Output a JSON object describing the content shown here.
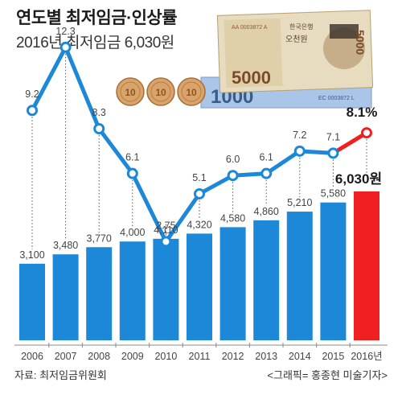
{
  "header": {
    "title": "연도별 최저임금·인상률",
    "subtitle": "2016년 최저임금 6,030원"
  },
  "footer": {
    "source": "자료: 최저임금위원회",
    "credit": "<그래픽= 홍종현 미술기자>"
  },
  "illustration": {
    "banknote_5000_text": "5000",
    "banknote_bank_text": "한국은행",
    "banknote_name_text": "오천원",
    "banknote_serial": "AA 0003872 A",
    "banknote_1000_text": "1000",
    "banknote_1000_serial": "EC 0003872 L",
    "coin_text": "10"
  },
  "colors": {
    "bar": "#1e88d8",
    "bar_highlight": "#f02020",
    "line": "#1e88d8",
    "line_highlight": "#f02020"
  },
  "chart_data": {
    "type": "bar",
    "categories": [
      "2006",
      "2007",
      "2008",
      "2009",
      "2010",
      "2011",
      "2012",
      "2013",
      "2014",
      "2015",
      "2016년"
    ],
    "series": [
      {
        "values": [
          3100,
          3480,
          3770,
          4000,
          4110,
          4320,
          4580,
          4860,
          5210,
          5580,
          6030
        ],
        "labels": [
          "3,100",
          "3,480",
          "3,770",
          "4,000",
          "4,110",
          "4,320",
          "4,580",
          "4,860",
          "5,210",
          "5,580",
          "6,030원"
        ]
      },
      {
        "type": "line",
        "values": [
          9.2,
          12.3,
          8.3,
          6.1,
          2.75,
          5.1,
          6.0,
          6.1,
          7.2,
          7.1,
          8.1
        ],
        "labels": [
          "9.2",
          "12.3",
          "8.3",
          "6.1",
          "2.75",
          "5.1",
          "6.0",
          "6.1",
          "7.2",
          "7.1",
          "8.1%"
        ]
      }
    ],
    "highlight_index": 10,
    "grid": false
  }
}
